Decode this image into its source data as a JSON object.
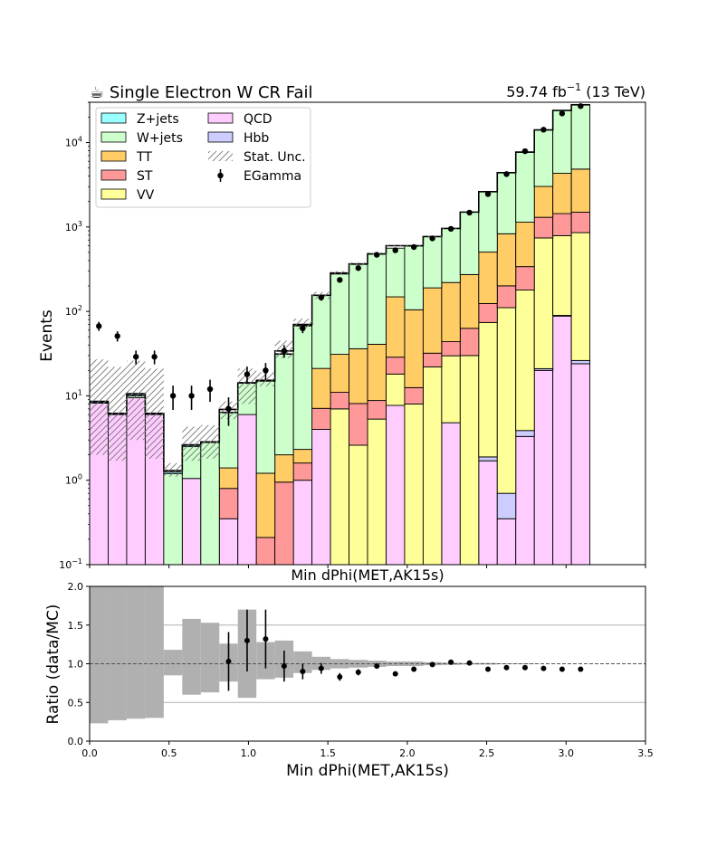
{
  "chart_data": [
    {
      "type": "stacked-step-histogram-log",
      "title": "☕ Single Electron W CR Fail",
      "lumi_label": {
        "value": "59.74 fb",
        "sup": "−1",
        "suffix": " (13 TeV)"
      },
      "xlabel": "Min dPhi(MET,AK15s)",
      "ylabel": "Events",
      "xlim": [
        0,
        3.5
      ],
      "ylim": [
        0.1,
        30000
      ],
      "yscale": "log",
      "y_ticks": [
        {
          "value": 0.1,
          "base": "10",
          "exp": "−1"
        },
        {
          "value": 1,
          "base": "10",
          "exp": "0"
        },
        {
          "value": 10,
          "base": "10",
          "exp": "1"
        },
        {
          "value": 100,
          "base": "10",
          "exp": "2"
        },
        {
          "value": 1000,
          "base": "10",
          "exp": "3"
        },
        {
          "value": 10000,
          "base": "10",
          "exp": "4"
        }
      ],
      "bin_edges": [
        0,
        0.1167,
        0.2333,
        0.35,
        0.4667,
        0.5833,
        0.7,
        0.8167,
        0.9333,
        1.05,
        1.1667,
        1.2833,
        1.4,
        1.5167,
        1.6333,
        1.75,
        1.8667,
        1.9833,
        2.1,
        2.2167,
        2.3333,
        2.45,
        2.5667,
        2.6833,
        2.8,
        2.9167,
        3.0333,
        3.15
      ],
      "stack_order": [
        "QCD",
        "Hbb",
        "VV",
        "ST",
        "TT",
        "W+jets",
        "Z+jets"
      ],
      "series": [
        {
          "name": "Hbb",
          "color": "#ccccff",
          "values": [
            0,
            0,
            0,
            0,
            0,
            0,
            0,
            0,
            0,
            0,
            0,
            0,
            0,
            0,
            0,
            0,
            0,
            0,
            0,
            0,
            0,
            0.19,
            0.35,
            0.58,
            0.98,
            1.7,
            2.2
          ]
        },
        {
          "name": "QCD",
          "color": "#ffccff",
          "values": [
            8.2,
            6.0,
            9.5,
            6.0,
            0,
            1.05,
            0,
            0.35,
            6.0,
            0,
            0,
            1.0,
            4.0,
            0,
            0,
            0,
            7.7,
            0,
            0,
            4.8,
            0,
            1.7,
            0.35,
            3.3,
            20,
            88,
            24
          ]
        },
        {
          "name": "VV",
          "color": "#ffff99",
          "values": [
            0,
            0,
            0,
            0,
            0,
            0,
            0,
            0,
            0,
            0,
            0,
            0,
            0,
            7.0,
            2.6,
            5.3,
            10.4,
            8.0,
            22,
            25,
            30,
            72,
            110,
            175,
            720,
            700,
            830
          ]
        },
        {
          "name": "ST",
          "color": "#ff9999",
          "values": [
            0,
            0,
            0,
            0,
            0,
            0,
            0,
            0.45,
            0,
            0.21,
            0.95,
            0.6,
            3.1,
            4.0,
            5.5,
            3.5,
            10.6,
            4.5,
            10,
            14,
            33,
            50,
            90,
            160,
            560,
            650,
            640
          ]
        },
        {
          "name": "TT",
          "color": "#ffcc66",
          "values": [
            0,
            0,
            0,
            0,
            0,
            0,
            0,
            0.6,
            0,
            1.0,
            1.05,
            0.72,
            14,
            20,
            28,
            32,
            120,
            92,
            158,
            176,
            210,
            380,
            630,
            800,
            1720,
            2880,
            3350
          ]
        },
        {
          "name": "W+jets",
          "color": "#ccffcc",
          "values": [
            0.1,
            0.1,
            0.5,
            0.1,
            1.2,
            1.45,
            2.8,
            4.9,
            8.2,
            14,
            29,
            65,
            133,
            246,
            324,
            435,
            412,
            488,
            578,
            740,
            1220,
            2120,
            3570,
            6520,
            11100,
            19700,
            23200
          ]
        },
        {
          "name": "Z+jets",
          "color": "#99ffff",
          "values": [
            0.25,
            0.1,
            0.3,
            0.1,
            0.05,
            0.15,
            0.05,
            0.1,
            0.2,
            0.2,
            0.5,
            1,
            1,
            1,
            1,
            1,
            1,
            1,
            1,
            1,
            1,
            1,
            1,
            1,
            1,
            1,
            1
          ]
        }
      ],
      "total_mc": [
        8.6,
        6.2,
        10.6,
        6.2,
        1.3,
        2.6,
        2.85,
        6.9,
        14.2,
        15,
        34,
        70,
        155,
        285,
        365,
        480,
        600,
        600,
        770,
        960,
        1500,
        2620,
        4400,
        7700,
        14100,
        24000,
        28000
      ],
      "stat_unc_band": {
        "label": "Stat. Unc.",
        "lo": [
          2.0,
          1.7,
          3.0,
          1.8,
          1.1,
          1.7,
          1.8,
          5.3,
          8.0,
          13,
          28,
          62,
          140,
          270,
          350,
          470,
          590,
          590,
          760,
          950,
          1490,
          2610,
          4380,
          7680,
          14050,
          23950,
          27950
        ],
        "hi": [
          27,
          22,
          26,
          21,
          1.6,
          4.3,
          4.5,
          8.6,
          21,
          19,
          45,
          82,
          170,
          300,
          380,
          500,
          615,
          615,
          785,
          975,
          1520,
          2640,
          4420,
          7720,
          14150,
          24050,
          28050
        ]
      },
      "data": {
        "name": "EGamma",
        "x": [
          0.0583,
          0.175,
          0.2917,
          0.4083,
          0.525,
          0.6417,
          0.7583,
          0.875,
          0.9917,
          1.1083,
          1.225,
          1.3417,
          1.4583,
          1.575,
          1.6917,
          1.8083,
          1.925,
          2.0417,
          2.1583,
          2.275,
          2.3917,
          2.5083,
          2.625,
          2.7417,
          2.8583,
          2.975,
          3.0917
        ],
        "y": [
          67,
          51,
          29,
          29,
          10,
          10,
          12,
          7,
          18,
          20,
          34,
          63,
          146,
          236,
          326,
          468,
          529,
          579,
          733,
          950,
          1480,
          2450,
          4230,
          7900,
          14200,
          22100,
          27000
        ],
        "err": [
          8.2,
          7.1,
          5.4,
          5.4,
          3.2,
          3.2,
          3.5,
          2.6,
          4.2,
          4.5,
          5.8,
          7.9,
          12,
          15,
          18,
          22,
          23,
          24,
          27,
          31,
          38,
          50,
          65,
          89,
          119,
          149,
          164
        ]
      },
      "legend": {
        "position": "top-left",
        "columns": [
          [
            {
              "label": "Z+jets",
              "kind": "patch",
              "color": "#99ffff"
            },
            {
              "label": "W+jets",
              "kind": "patch",
              "color": "#ccffcc"
            },
            {
              "label": "TT",
              "kind": "patch",
              "color": "#ffcc66"
            },
            {
              "label": "ST",
              "kind": "patch",
              "color": "#ff9999"
            },
            {
              "label": "VV",
              "kind": "patch",
              "color": "#ffff99"
            }
          ],
          [
            {
              "label": "QCD",
              "kind": "patch",
              "color": "#ffccff"
            },
            {
              "label": "Hbb",
              "kind": "patch",
              "color": "#ccccff"
            },
            {
              "label": "Stat. Unc.",
              "kind": "hatch",
              "color": "#888888"
            },
            {
              "label": "EGamma",
              "kind": "errorbar",
              "color": "#000000"
            }
          ]
        ]
      }
    },
    {
      "type": "ratio",
      "xlabel": "Min dPhi(MET,AK15s)",
      "ylabel": "Ratio (data/MC)",
      "xlim": [
        0,
        3.5
      ],
      "ylim": [
        0,
        2.0
      ],
      "x_ticks": [
        "0.0",
        "0.5",
        "1.0",
        "1.5",
        "2.0",
        "2.5",
        "3.0",
        "3.5"
      ],
      "y_ticks": [
        "0.0",
        "0.5",
        "1.0",
        "1.5",
        "2.0"
      ],
      "reference_line": 1.0,
      "gridlines_y": [
        0.5,
        1.0,
        1.5
      ],
      "unc_band": {
        "lo": [
          0.23,
          0.27,
          0.29,
          0.3,
          0.85,
          0.6,
          0.63,
          0.77,
          0.56,
          0.8,
          0.82,
          0.88,
          0.92,
          0.94,
          0.95,
          0.96,
          0.97,
          0.97,
          0.98,
          0.985,
          0.99,
          0.99,
          0.995,
          0.995,
          1,
          1,
          1
        ],
        "hi": [
          3.1,
          3.5,
          2.5,
          3.3,
          1.18,
          1.58,
          1.53,
          1.26,
          1.7,
          1.28,
          1.3,
          1.16,
          1.09,
          1.06,
          1.05,
          1.04,
          1.03,
          1.03,
          1.02,
          1.015,
          1.01,
          1.01,
          1.005,
          1.005,
          1,
          1,
          1
        ]
      },
      "points": {
        "x": [
          0.875,
          0.9917,
          1.1083,
          1.225,
          1.3417,
          1.4583,
          1.575,
          1.6917,
          1.8083,
          1.925,
          2.0417,
          2.1583,
          2.275,
          2.3917,
          2.5083,
          2.625,
          2.7417,
          2.8583,
          2.975,
          3.0917
        ],
        "y": [
          1.03,
          1.3,
          1.32,
          0.97,
          0.9,
          0.94,
          0.83,
          0.89,
          0.97,
          0.87,
          0.93,
          0.99,
          1.02,
          1.01,
          0.93,
          0.95,
          0.95,
          0.94,
          0.93,
          0.93
        ],
        "err": [
          0.38,
          0.4,
          0.38,
          0.2,
          0.1,
          0.07,
          0.05,
          0.04,
          0.035,
          0.03,
          0.03,
          0.025,
          0.02,
          0.02,
          0,
          0,
          0,
          0,
          0,
          0
        ]
      }
    }
  ]
}
